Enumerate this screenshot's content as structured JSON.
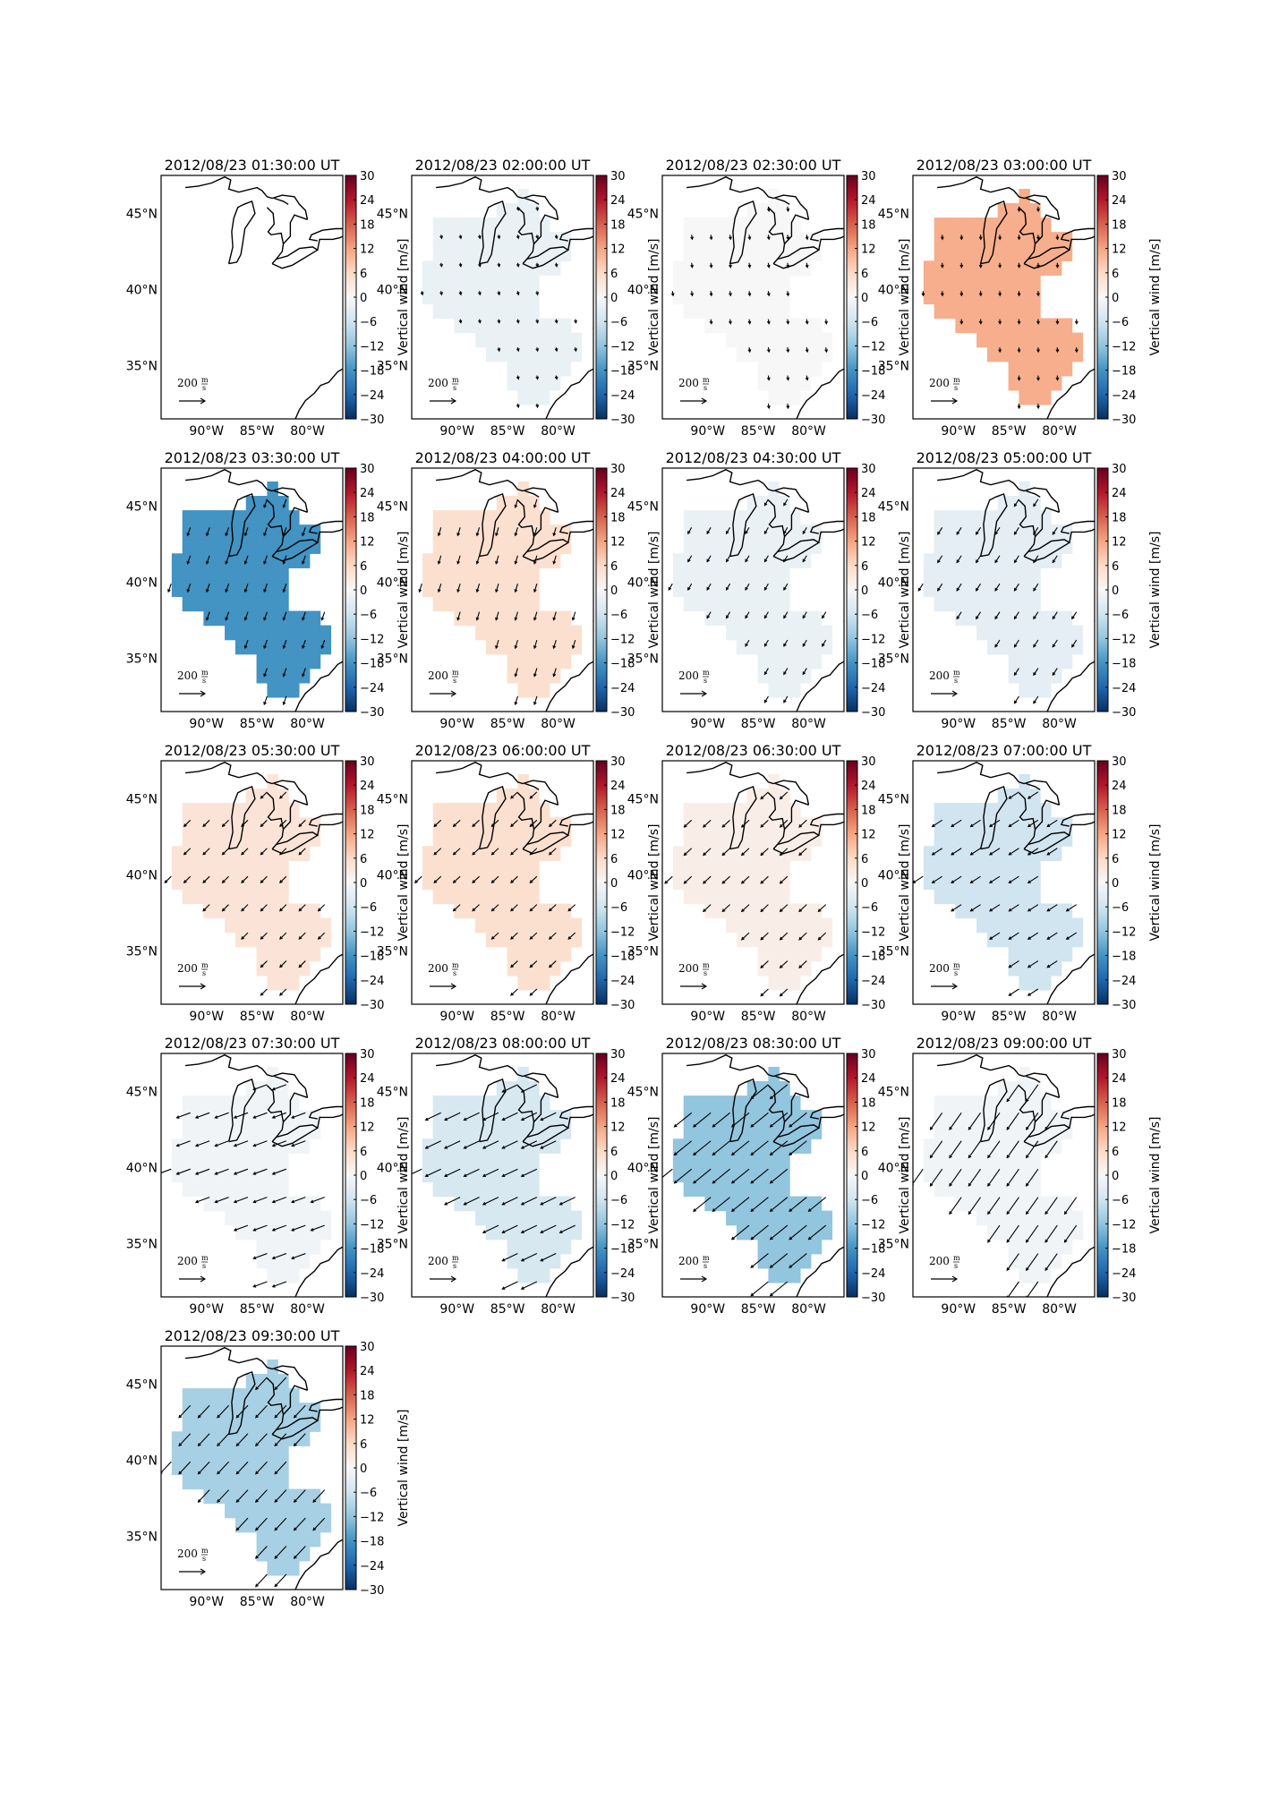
{
  "figure": {
    "panel_titles": [
      "2012/08/23 01:30:00 UT",
      "2012/08/23 02:00:00 UT",
      "2012/08/23 02:30:00 UT",
      "2012/08/23 03:00:00 UT",
      "2012/08/23 03:30:00 UT",
      "2012/08/23 04:00:00 UT",
      "2012/08/23 04:30:00 UT",
      "2012/08/23 05:00:00 UT",
      "2012/08/23 05:30:00 UT",
      "2012/08/23 06:00:00 UT",
      "2012/08/23 06:30:00 UT",
      "2012/08/23 07:00:00 UT",
      "2012/08/23 07:30:00 UT",
      "2012/08/23 08:00:00 UT",
      "2012/08/23 08:30:00 UT",
      "2012/08/23 09:00:00 UT",
      "2012/08/23 09:30:00 UT"
    ],
    "lat_tick_labels": [
      "45°N",
      "40°N",
      "35°N"
    ],
    "lon_tick_labels": [
      "90°W",
      "85°W",
      "80°W"
    ],
    "colorbar": {
      "label": "Vertical wind [m/s]",
      "ticks": [
        "30",
        "24",
        "18",
        "12",
        "6",
        "0",
        "−6",
        "−12",
        "−18",
        "−24",
        "−30"
      ],
      "min": -30,
      "max": 30,
      "colormap": "RdBu_r"
    },
    "quiver_key": {
      "value": "200",
      "unit_numerator": "m",
      "unit_denominator": "s"
    },
    "colors": {
      "red_max": "#67001f",
      "white_zero": "#f7f7f7",
      "blue_min": "#053061"
    }
  },
  "chart_data": {
    "type": "map",
    "title": "",
    "x_axis": "longitude",
    "y_axis": "latitude",
    "xlim_degE": [
      -94.5,
      -76.5
    ],
    "ylim_degN": [
      31.5,
      47.5
    ],
    "colorbar_range": [
      -30,
      30
    ],
    "panels": [
      {
        "time": "2012/08/23 01:30:00 UT",
        "vertical_wind_ms": null,
        "has_data": false
      },
      {
        "time": "2012/08/23 02:00:00 UT",
        "vertical_wind_ms": -2,
        "has_data": true
      },
      {
        "time": "2012/08/23 02:30:00 UT",
        "vertical_wind_ms": 0,
        "has_data": true
      },
      {
        "time": "2012/08/23 03:00:00 UT",
        "vertical_wind_ms": 11,
        "has_data": true
      },
      {
        "time": "2012/08/23 03:30:00 UT",
        "vertical_wind_ms": -18,
        "has_data": true
      },
      {
        "time": "2012/08/23 04:00:00 UT",
        "vertical_wind_ms": 5,
        "has_data": true
      },
      {
        "time": "2012/08/23 04:30:00 UT",
        "vertical_wind_ms": -2,
        "has_data": true
      },
      {
        "time": "2012/08/23 05:00:00 UT",
        "vertical_wind_ms": -3,
        "has_data": true
      },
      {
        "time": "2012/08/23 05:30:00 UT",
        "vertical_wind_ms": 4,
        "has_data": true
      },
      {
        "time": "2012/08/23 06:00:00 UT",
        "vertical_wind_ms": 5,
        "has_data": true
      },
      {
        "time": "2012/08/23 06:30:00 UT",
        "vertical_wind_ms": 2,
        "has_data": true
      },
      {
        "time": "2012/08/23 07:00:00 UT",
        "vertical_wind_ms": -6,
        "has_data": true
      },
      {
        "time": "2012/08/23 07:30:00 UT",
        "vertical_wind_ms": -1,
        "has_data": true
      },
      {
        "time": "2012/08/23 08:00:00 UT",
        "vertical_wind_ms": -5,
        "has_data": true
      },
      {
        "time": "2012/08/23 08:30:00 UT",
        "vertical_wind_ms": -12,
        "has_data": true
      },
      {
        "time": "2012/08/23 09:00:00 UT",
        "vertical_wind_ms": -1,
        "has_data": true
      },
      {
        "time": "2012/08/23 09:30:00 UT",
        "vertical_wind_ms": -10,
        "has_data": true
      }
    ]
  }
}
